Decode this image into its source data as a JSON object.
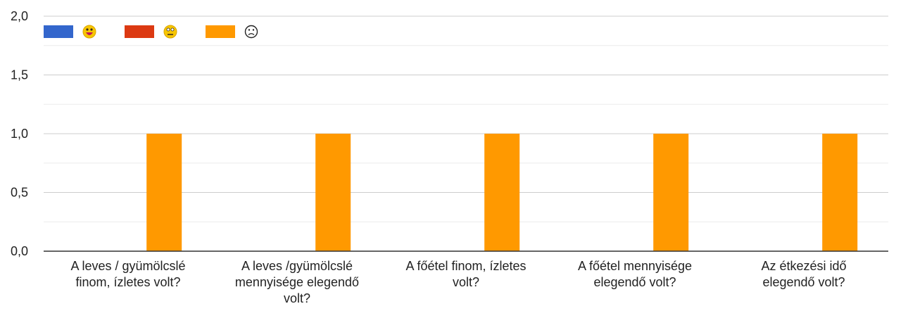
{
  "chart_data": {
    "type": "bar",
    "categories": [
      [
        "A leves / gyümölcslé",
        "finom, ízletes volt?"
      ],
      [
        "A leves /gyümölcslé",
        "mennyisége elegendő",
        "volt?"
      ],
      [
        "A főétel finom, ízletes",
        "volt?"
      ],
      [
        "A főétel mennyisége",
        "elegendő volt?"
      ],
      [
        "Az étkezési idő",
        "elegendő volt?"
      ]
    ],
    "series": [
      {
        "name": "😀",
        "color": "#3366cc",
        "values": [
          0,
          0,
          0,
          0,
          0
        ]
      },
      {
        "name": "😐",
        "color": "#dc3912",
        "values": [
          0,
          0,
          0,
          0,
          0
        ]
      },
      {
        "name": "☹",
        "color": "#ff9900",
        "values": [
          1,
          1,
          1,
          1,
          1
        ]
      }
    ],
    "yticks": [
      "0,0",
      "0,5",
      "1,0",
      "1,5",
      "2,0"
    ],
    "ylim": [
      0,
      2
    ],
    "grid": true,
    "legend_position": "top-left"
  }
}
